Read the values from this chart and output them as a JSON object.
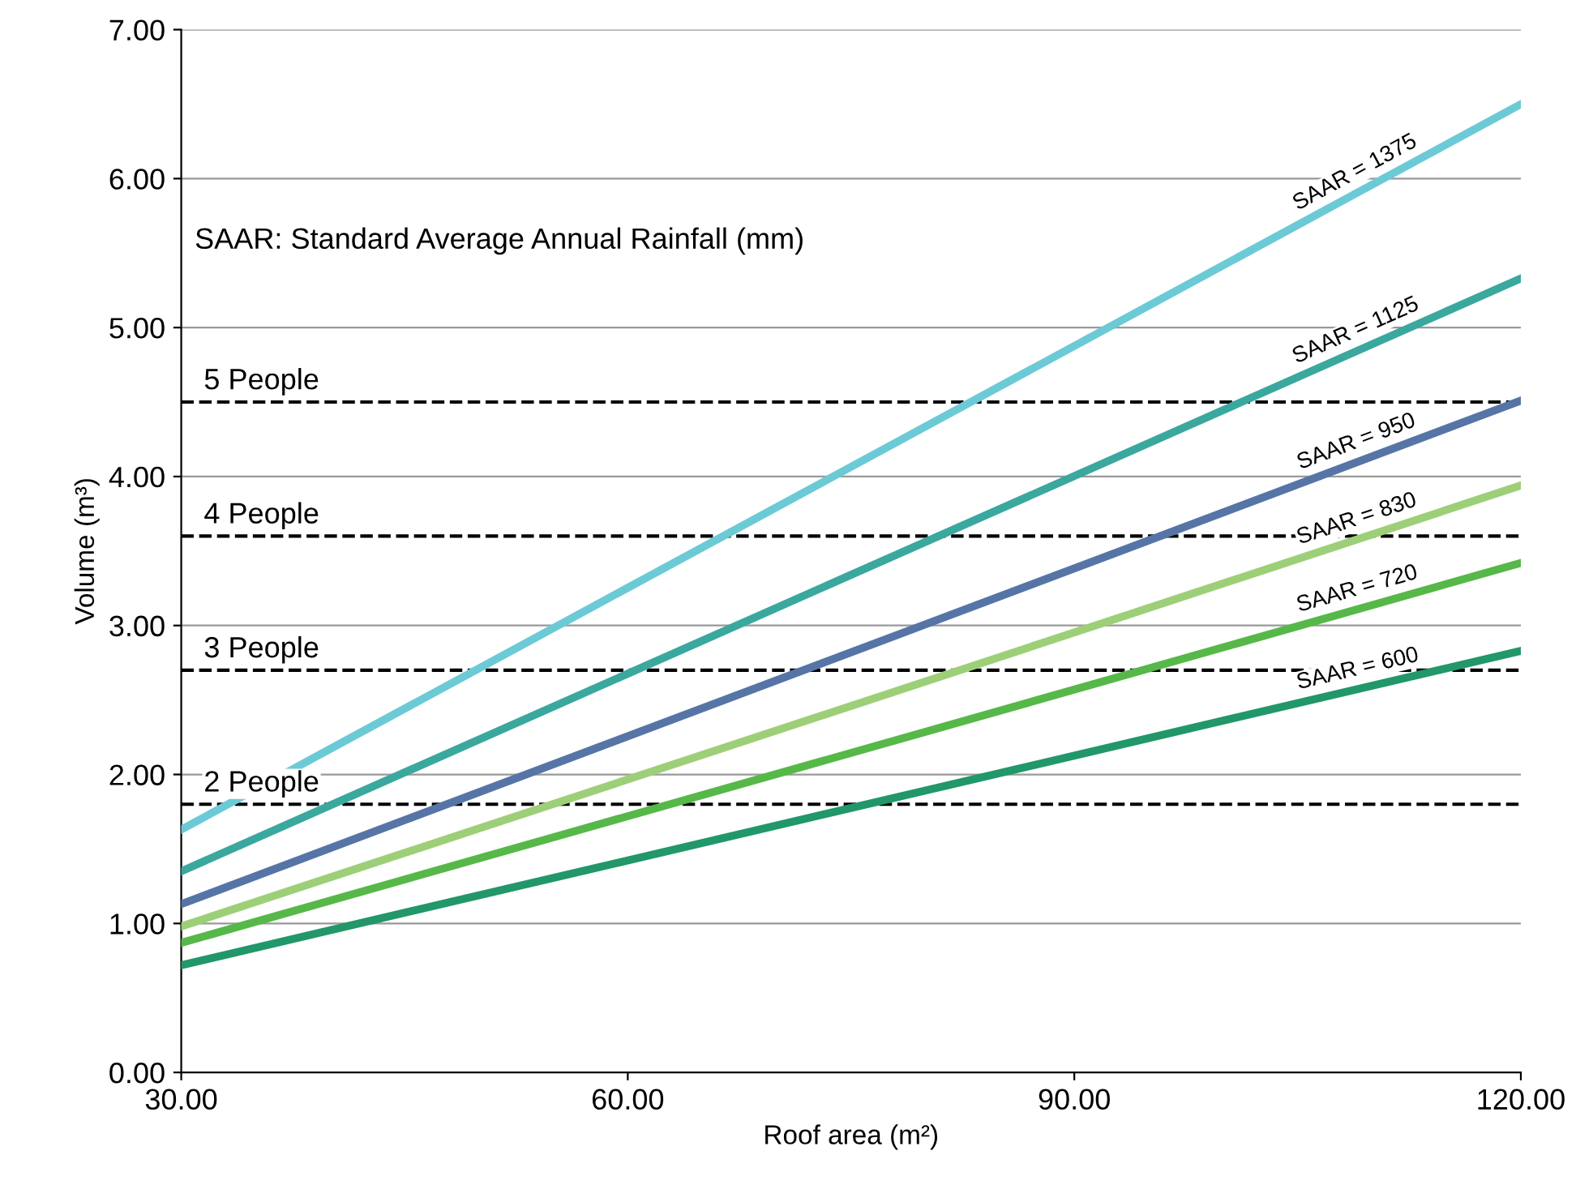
{
  "chart_data": {
    "type": "line",
    "xlabel": "Roof area (m²)",
    "ylabel": "Volume (m³)",
    "annotations": [
      "SAAR: Standard Average Annual Rainfall (mm)"
    ],
    "x": [
      30,
      120
    ],
    "series": [
      {
        "name": "SAAR = 1375",
        "color": "#6ccad6",
        "values": [
          1.63,
          6.5
        ]
      },
      {
        "name": "SAAR = 1125",
        "color": "#3aa89e",
        "values": [
          1.35,
          5.33
        ]
      },
      {
        "name": "SAAR = 950",
        "color": "#5675a6",
        "values": [
          1.13,
          4.51
        ]
      },
      {
        "name": "SAAR = 830",
        "color": "#9dcf78",
        "values": [
          0.98,
          3.94
        ]
      },
      {
        "name": "SAAR = 720",
        "color": "#56b848",
        "values": [
          0.87,
          3.42
        ]
      },
      {
        "name": "SAAR = 600",
        "color": "#21976a",
        "values": [
          0.72,
          2.83
        ]
      }
    ],
    "ref_lines": [
      {
        "axis": "y",
        "value": 4.5,
        "label": "5 People",
        "color": "#000000",
        "line_style": "dashed"
      },
      {
        "axis": "y",
        "value": 3.6,
        "label": "4 People",
        "color": "#000000",
        "line_style": "dashed"
      },
      {
        "axis": "y",
        "value": 2.7,
        "label": "3 People",
        "color": "#000000",
        "line_style": "dashed"
      },
      {
        "axis": "y",
        "value": 1.8,
        "label": "2 People",
        "color": "#000000",
        "line_style": "dashed"
      }
    ],
    "xlim": [
      30,
      120
    ],
    "ylim": [
      0,
      7
    ],
    "xticks": [
      {
        "value": 30,
        "label": "30.00"
      },
      {
        "value": 60,
        "label": "60.00"
      },
      {
        "value": 90,
        "label": "90.00"
      },
      {
        "value": 120,
        "label": "120.00"
      }
    ],
    "yticks": [
      {
        "value": 0,
        "label": "0.00"
      },
      {
        "value": 1,
        "label": "1.00"
      },
      {
        "value": 2,
        "label": "2.00"
      },
      {
        "value": 3,
        "label": "3.00"
      },
      {
        "value": 4,
        "label": "4.00"
      },
      {
        "value": 5,
        "label": "5.00"
      },
      {
        "value": 6,
        "label": "6.00"
      },
      {
        "value": 7,
        "label": "7.00"
      }
    ],
    "grid": "y",
    "legend": false,
    "marker": "none",
    "line_style": "solid"
  }
}
